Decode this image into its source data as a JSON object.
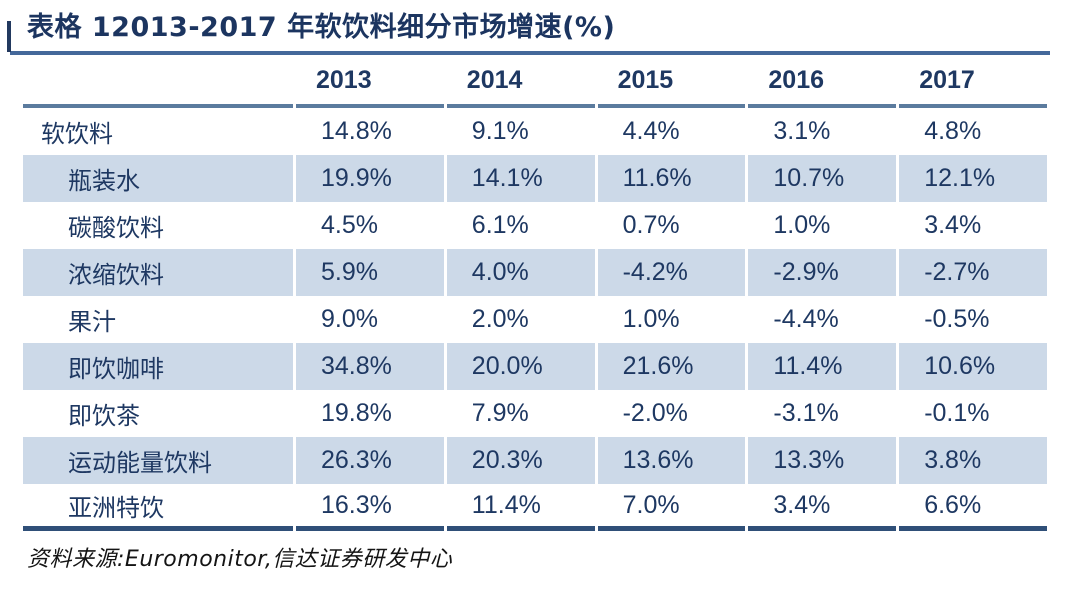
{
  "title": "表格 12013-2017 年软饮料细分市场增速(%)",
  "source_note": "资料来源:Euromonitor,信达证券研发中心",
  "colors": {
    "text_navy": "#1E3862",
    "row_shade": "#CCD9E8",
    "title_rule": "#44689A",
    "header_rule": "#5B7B9E",
    "bottom_rule": "#2F4F78",
    "source_text": "#141414"
  },
  "chart_data": {
    "type": "table",
    "title": "表格 12013-2017 年软饮料细分市场增速(%)",
    "columns": [
      "",
      "2013",
      "2014",
      "2015",
      "2016",
      "2017"
    ],
    "rows": [
      {
        "label": "软饮料",
        "indent": 0,
        "values": [
          "14.8%",
          "9.1%",
          "4.4%",
          "3.1%",
          "4.8%"
        ]
      },
      {
        "label": "瓶装水",
        "indent": 1,
        "values": [
          "19.9%",
          "14.1%",
          "11.6%",
          "10.7%",
          "12.1%"
        ]
      },
      {
        "label": "碳酸饮料",
        "indent": 1,
        "values": [
          "4.5%",
          "6.1%",
          "0.7%",
          "1.0%",
          "3.4%"
        ]
      },
      {
        "label": "浓缩饮料",
        "indent": 1,
        "values": [
          "5.9%",
          "4.0%",
          "-4.2%",
          "-2.9%",
          "-2.7%"
        ]
      },
      {
        "label": "果汁",
        "indent": 1,
        "values": [
          "9.0%",
          "2.0%",
          "1.0%",
          "-4.4%",
          "-0.5%"
        ]
      },
      {
        "label": "即饮咖啡",
        "indent": 1,
        "values": [
          "34.8%",
          "20.0%",
          "21.6%",
          "11.4%",
          "10.6%"
        ]
      },
      {
        "label": "即饮茶",
        "indent": 1,
        "values": [
          "19.8%",
          "7.9%",
          "-2.0%",
          "-3.1%",
          "-0.1%"
        ]
      },
      {
        "label": "运动能量饮料",
        "indent": 1,
        "values": [
          "26.3%",
          "20.3%",
          "13.6%",
          "13.3%",
          "3.8%"
        ]
      },
      {
        "label": "亚洲特饮",
        "indent": 1,
        "values": [
          "16.3%",
          "11.4%",
          "7.0%",
          "3.4%",
          "6.6%"
        ]
      }
    ],
    "source": "资料来源:Euromonitor,信达证券研发中心"
  }
}
